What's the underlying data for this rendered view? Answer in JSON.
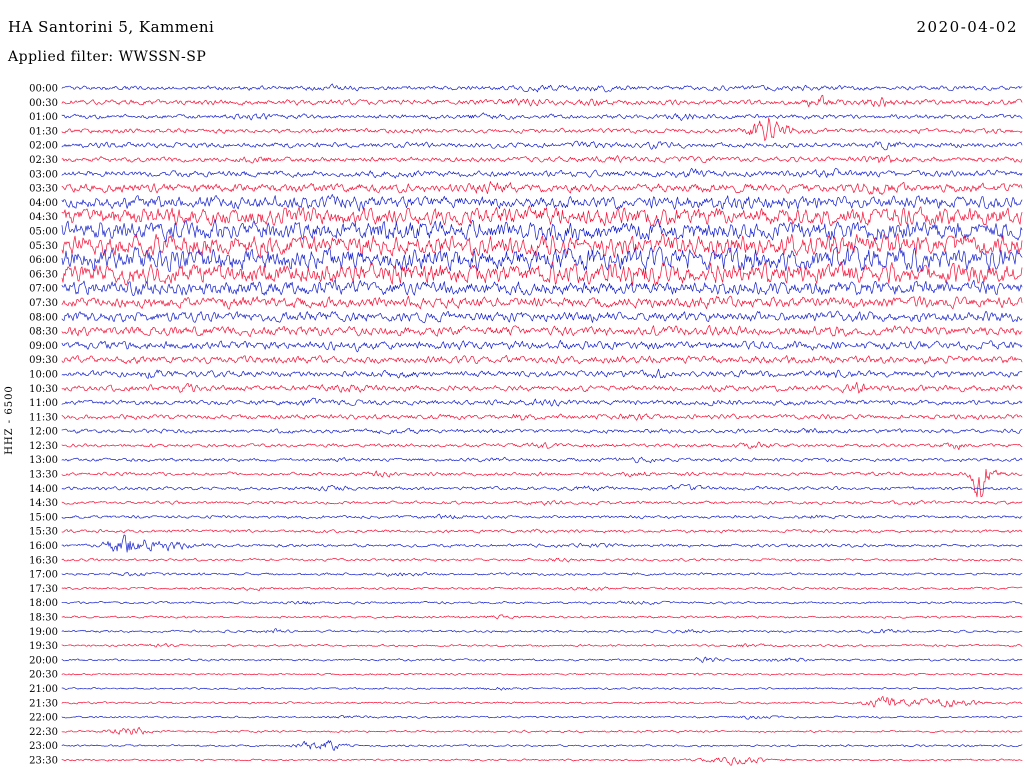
{
  "header": {
    "station_title": "HA Santorini 5, Kammeni",
    "date": "2020-04-02",
    "filter_label": "Applied filter: WWSSN-SP"
  },
  "axis": {
    "y_label": "HHZ - 6500"
  },
  "chart_data": {
    "type": "line",
    "kind": "helicorder-seismogram",
    "title": "HA Santorini 5, Kammeni",
    "date": "2020-04-02",
    "filter": "WWSSN-SP",
    "channel": "HHZ",
    "scale": "6500",
    "row_duration_minutes": 30,
    "x_range": [
      "00:00",
      "24:00"
    ],
    "grid": false,
    "legend": "none",
    "colors": {
      "blue": "#1520cc",
      "red": "#f50f35"
    },
    "rows": [
      {
        "time": "00:00",
        "color": "blue",
        "amp": 1.3,
        "events": [
          {
            "x": 0.28,
            "a": 0.8
          },
          {
            "x": 0.5,
            "a": 1.0
          },
          {
            "x": 0.56,
            "a": 0.8
          },
          {
            "x": 0.75,
            "a": 0.6
          }
        ]
      },
      {
        "time": "00:30",
        "color": "red",
        "amp": 1.5,
        "events": [
          {
            "x": 0.48,
            "a": 1.2
          },
          {
            "x": 0.55,
            "a": 1.0
          },
          {
            "x": 0.79,
            "a": 2.4,
            "w": 0.015
          },
          {
            "x": 0.85,
            "a": 1.6
          }
        ]
      },
      {
        "time": "01:00",
        "color": "blue",
        "amp": 1.3,
        "events": [
          {
            "x": 0.2,
            "a": 0.8
          },
          {
            "x": 0.44,
            "a": 0.7
          },
          {
            "x": 0.65,
            "a": 0.8
          }
        ]
      },
      {
        "time": "01:30",
        "color": "red",
        "amp": 1.3,
        "events": [
          {
            "x": 0.3,
            "a": 0.6
          },
          {
            "x": 0.73,
            "a": 7.5,
            "w": 0.01
          },
          {
            "x": 0.74,
            "a": 3.5,
            "w": 0.022
          }
        ]
      },
      {
        "time": "02:00",
        "color": "blue",
        "amp": 1.5,
        "events": [
          {
            "x": 0.55,
            "a": 0.8
          },
          {
            "x": 0.62,
            "a": 1.0
          },
          {
            "x": 0.86,
            "a": 1.4,
            "w": 0.015
          }
        ]
      },
      {
        "time": "02:30",
        "color": "red",
        "amp": 1.5,
        "events": [
          {
            "x": 0.2,
            "a": 0.9
          },
          {
            "x": 0.57,
            "a": 0.8
          },
          {
            "x": 0.85,
            "a": 2.0,
            "w": 0.018
          }
        ]
      },
      {
        "time": "03:00",
        "color": "blue",
        "amp": 1.8,
        "events": [
          {
            "x": 0.35,
            "a": 0.8
          },
          {
            "x": 0.65,
            "a": 1.1
          },
          {
            "x": 0.8,
            "a": 1.2
          }
        ]
      },
      {
        "time": "03:30",
        "color": "red",
        "amp": 2.6,
        "events": [
          {
            "x": 0.45,
            "a": 1.4
          },
          {
            "x": 0.85,
            "a": 1.8
          }
        ]
      },
      {
        "time": "04:00",
        "color": "blue",
        "amp": 3.6,
        "events": [
          {
            "x": 0.3,
            "a": 1.2
          },
          {
            "x": 0.7,
            "a": 1.2
          }
        ]
      },
      {
        "time": "04:30",
        "color": "red",
        "amp": 5.0,
        "events": [
          {
            "x": 0.5,
            "a": 1.0
          }
        ]
      },
      {
        "time": "05:00",
        "color": "blue",
        "amp": 5.4,
        "events": [
          {
            "x": 0.35,
            "a": 1.0
          }
        ]
      },
      {
        "time": "05:30",
        "color": "red",
        "amp": 5.8,
        "events": []
      },
      {
        "time": "06:00",
        "color": "blue",
        "amp": 6.4,
        "events": []
      },
      {
        "time": "06:30",
        "color": "red",
        "amp": 5.8,
        "events": [
          {
            "x": 0.6,
            "a": 1.0
          }
        ]
      },
      {
        "time": "07:00",
        "color": "blue",
        "amp": 4.0,
        "events": [
          {
            "x": 0.2,
            "a": 0.8
          }
        ]
      },
      {
        "time": "07:30",
        "color": "red",
        "amp": 3.2,
        "events": []
      },
      {
        "time": "08:00",
        "color": "blue",
        "amp": 2.9,
        "events": [
          {
            "x": 0.55,
            "a": 0.8
          }
        ]
      },
      {
        "time": "08:30",
        "color": "red",
        "amp": 2.7,
        "events": []
      },
      {
        "time": "09:00",
        "color": "blue",
        "amp": 2.5,
        "events": [
          {
            "x": 0.3,
            "a": 0.6
          }
        ]
      },
      {
        "time": "09:30",
        "color": "red",
        "amp": 2.2,
        "events": [
          {
            "x": 0.75,
            "a": 0.6
          }
        ]
      },
      {
        "time": "10:00",
        "color": "blue",
        "amp": 1.8,
        "events": [
          {
            "x": 0.1,
            "a": 1.4,
            "w": 0.015
          },
          {
            "x": 0.35,
            "a": 0.9
          },
          {
            "x": 0.62,
            "a": 1.8,
            "w": 0.012
          },
          {
            "x": 0.8,
            "a": 1.4,
            "w": 0.015
          }
        ]
      },
      {
        "time": "10:30",
        "color": "red",
        "amp": 1.7,
        "events": [
          {
            "x": 0.13,
            "a": 1.2,
            "w": 0.015
          },
          {
            "x": 0.3,
            "a": 0.9
          },
          {
            "x": 0.83,
            "a": 2.0,
            "w": 0.015
          }
        ]
      },
      {
        "time": "11:00",
        "color": "blue",
        "amp": 1.5,
        "events": [
          {
            "x": 0.25,
            "a": 1.0
          },
          {
            "x": 0.5,
            "a": 0.8
          },
          {
            "x": 0.68,
            "a": 0.7
          }
        ]
      },
      {
        "time": "11:30",
        "color": "red",
        "amp": 1.4,
        "events": [
          {
            "x": 0.48,
            "a": 1.2,
            "w": 0.015
          },
          {
            "x": 0.6,
            "a": 0.8
          }
        ]
      },
      {
        "time": "12:00",
        "color": "blue",
        "amp": 1.2,
        "events": [
          {
            "x": 0.35,
            "a": 0.8
          },
          {
            "x": 0.78,
            "a": 0.6
          }
        ]
      },
      {
        "time": "12:30",
        "color": "red",
        "amp": 1.0,
        "events": [
          {
            "x": 0.5,
            "a": 1.0,
            "w": 0.015
          },
          {
            "x": 0.72,
            "a": 1.3,
            "w": 0.015
          },
          {
            "x": 0.93,
            "a": 1.5,
            "w": 0.012
          }
        ]
      },
      {
        "time": "13:00",
        "color": "blue",
        "amp": 1.0,
        "events": [
          {
            "x": 0.45,
            "a": 0.6
          },
          {
            "x": 0.6,
            "a": 0.8
          }
        ]
      },
      {
        "time": "13:30",
        "color": "red",
        "amp": 1.0,
        "events": [
          {
            "x": 0.33,
            "a": 1.0,
            "w": 0.015
          },
          {
            "x": 0.6,
            "a": 1.0,
            "w": 0.015
          },
          {
            "x": 0.955,
            "a": 10.0,
            "w": 0.006
          },
          {
            "x": 0.96,
            "a": 4.0,
            "w": 0.014
          }
        ]
      },
      {
        "time": "14:00",
        "color": "blue",
        "amp": 1.0,
        "events": [
          {
            "x": 0.28,
            "a": 1.0,
            "w": 0.015
          },
          {
            "x": 0.55,
            "a": 0.9
          },
          {
            "x": 0.65,
            "a": 0.9
          }
        ]
      },
      {
        "time": "14:30",
        "color": "red",
        "amp": 0.9,
        "events": [
          {
            "x": 0.5,
            "a": 0.8
          },
          {
            "x": 0.88,
            "a": 0.6
          }
        ]
      },
      {
        "time": "15:00",
        "color": "blue",
        "amp": 0.9,
        "events": [
          {
            "x": 0.4,
            "a": 0.8
          },
          {
            "x": 0.78,
            "a": 0.9,
            "w": 0.015
          }
        ]
      },
      {
        "time": "15:30",
        "color": "red",
        "amp": 0.9,
        "events": [
          {
            "x": 0.5,
            "a": 0.5
          }
        ]
      },
      {
        "time": "16:00",
        "color": "blue",
        "amp": 0.9,
        "events": [
          {
            "x": 0.065,
            "a": 5.5,
            "w": 0.018
          },
          {
            "x": 0.1,
            "a": 2.5,
            "w": 0.03
          },
          {
            "x": 0.55,
            "a": 0.7
          }
        ]
      },
      {
        "time": "16:30",
        "color": "red",
        "amp": 0.75,
        "events": [
          {
            "x": 0.52,
            "a": 0.6
          }
        ]
      },
      {
        "time": "17:00",
        "color": "blue",
        "amp": 0.75,
        "events": [
          {
            "x": 0.08,
            "a": 0.8,
            "w": 0.015
          },
          {
            "x": 0.35,
            "a": 0.6
          }
        ]
      },
      {
        "time": "17:30",
        "color": "red",
        "amp": 0.7,
        "events": [
          {
            "x": 0.2,
            "a": 0.6
          },
          {
            "x": 0.55,
            "a": 0.6
          }
        ]
      },
      {
        "time": "18:00",
        "color": "blue",
        "amp": 0.7,
        "events": [
          {
            "x": 0.25,
            "a": 0.8,
            "w": 0.015
          },
          {
            "x": 0.6,
            "a": 0.6
          }
        ]
      },
      {
        "time": "18:30",
        "color": "red",
        "amp": 0.65,
        "events": [
          {
            "x": 0.45,
            "a": 0.5
          }
        ]
      },
      {
        "time": "19:00",
        "color": "blue",
        "amp": 0.7,
        "events": [
          {
            "x": 0.22,
            "a": 1.0,
            "w": 0.012
          },
          {
            "x": 0.65,
            "a": 0.8,
            "w": 0.015
          },
          {
            "x": 0.86,
            "a": 0.6
          }
        ]
      },
      {
        "time": "19:30",
        "color": "red",
        "amp": 0.65,
        "events": [
          {
            "x": 0.1,
            "a": 0.6
          },
          {
            "x": 0.72,
            "a": 1.0,
            "w": 0.015
          }
        ]
      },
      {
        "time": "20:00",
        "color": "blue",
        "amp": 0.65,
        "events": [
          {
            "x": 0.67,
            "a": 1.3,
            "w": 0.012
          },
          {
            "x": 0.75,
            "a": 0.8
          }
        ]
      },
      {
        "time": "20:30",
        "color": "red",
        "amp": 0.55,
        "events": []
      },
      {
        "time": "21:00",
        "color": "blue",
        "amp": 0.55,
        "events": [
          {
            "x": 0.45,
            "a": 0.5
          }
        ]
      },
      {
        "time": "21:30",
        "color": "red",
        "amp": 0.6,
        "events": [
          {
            "x": 0.86,
            "a": 3.5,
            "w": 0.02
          },
          {
            "x": 0.92,
            "a": 2.2,
            "w": 0.035
          }
        ]
      },
      {
        "time": "22:00",
        "color": "blue",
        "amp": 0.6,
        "events": [
          {
            "x": 0.3,
            "a": 0.5
          },
          {
            "x": 0.72,
            "a": 0.6
          }
        ]
      },
      {
        "time": "22:30",
        "color": "red",
        "amp": 0.6,
        "events": [
          {
            "x": 0.07,
            "a": 2.4,
            "w": 0.018
          }
        ]
      },
      {
        "time": "23:00",
        "color": "blue",
        "amp": 0.6,
        "events": [
          {
            "x": 0.27,
            "a": 3.8,
            "w": 0.02
          }
        ]
      },
      {
        "time": "23:30",
        "color": "red",
        "amp": 0.55,
        "events": [
          {
            "x": 0.7,
            "a": 2.2,
            "w": 0.025
          }
        ]
      }
    ]
  }
}
